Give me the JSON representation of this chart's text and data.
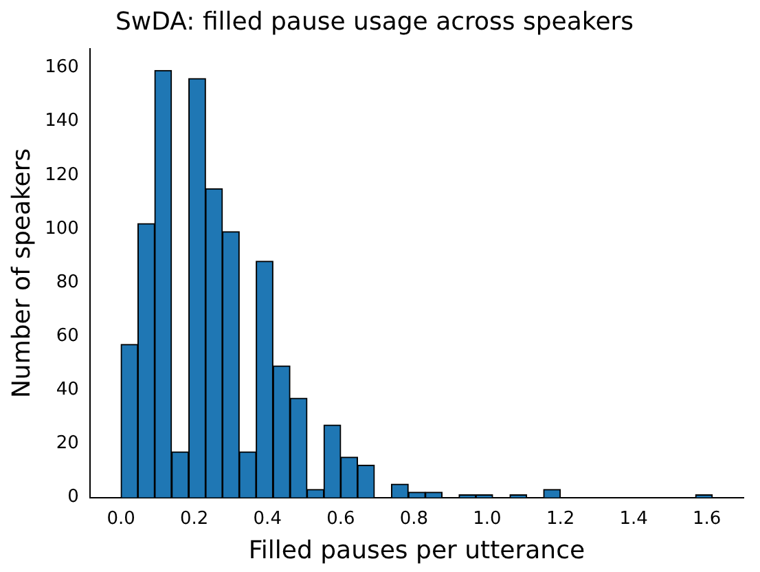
{
  "chart_data": {
    "type": "histogram",
    "title": "SwDA: filled pause usage across speakers",
    "xlabel": "Filled pauses per utterance",
    "ylabel": "Number of speakers",
    "bins": [
      0,
      0.046,
      0.092,
      0.138,
      0.185,
      0.231,
      0.277,
      0.323,
      0.369,
      0.415,
      0.462,
      0.508,
      0.554,
      0.6,
      0.646,
      0.692,
      0.738,
      0.785,
      0.831,
      0.877,
      0.923,
      0.969,
      1.015,
      1.062,
      1.108,
      1.154,
      1.2,
      1.246,
      1.292,
      1.338,
      1.385,
      1.431,
      1.477,
      1.523,
      1.569,
      1.615
    ],
    "values": [
      57,
      102,
      159,
      17,
      156,
      115,
      99,
      17,
      88,
      49,
      37,
      3,
      27,
      15,
      12,
      0,
      5,
      2,
      2,
      0,
      1,
      1,
      0,
      1,
      0,
      3,
      0,
      0,
      0,
      0,
      0,
      0,
      0,
      0,
      1
    ],
    "color": "#1f77b4",
    "xlim": [
      -0.085,
      1.7
    ],
    "ylim": [
      0,
      167
    ],
    "xticks": [
      {
        "value": 0,
        "label": "0.0"
      },
      {
        "value": 0.2,
        "label": "0.2"
      },
      {
        "value": 0.4,
        "label": "0.4"
      },
      {
        "value": 0.6,
        "label": "0.6"
      },
      {
        "value": 0.8,
        "label": "0.8"
      },
      {
        "value": 1,
        "label": "1.0"
      },
      {
        "value": 1.2,
        "label": "1.2"
      },
      {
        "value": 1.4,
        "label": "1.4"
      },
      {
        "value": 1.6,
        "label": "1.6"
      }
    ],
    "yticks": [
      0,
      20,
      40,
      60,
      80,
      100,
      120,
      140,
      160
    ],
    "grid": false,
    "legend": false
  }
}
